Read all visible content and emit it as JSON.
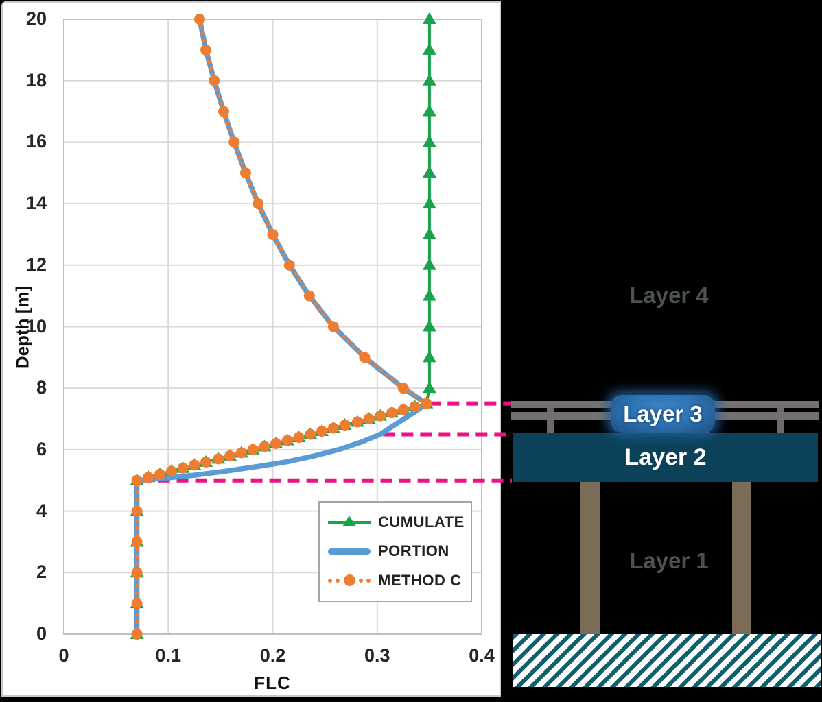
{
  "figure": {
    "description": "FLC vs depth profile chart with pile-supported deck layer schematic"
  },
  "chart_data": {
    "type": "line",
    "title": "",
    "xlabel": "FLC",
    "ylabel": "Depth [m]",
    "xlim": [
      0,
      0.4
    ],
    "ylim": [
      0,
      20
    ],
    "grid": true,
    "x_ticks": [
      "0",
      "0.1",
      "0.2",
      "0.3",
      "0.4"
    ],
    "x_tick_values": [
      0,
      0.1,
      0.2,
      0.3,
      0.4
    ],
    "y_ticks": [
      "0",
      "2",
      "4",
      "6",
      "8",
      "10",
      "12",
      "14",
      "16",
      "18",
      "20"
    ],
    "y_tick_values": [
      0,
      2,
      4,
      6,
      8,
      10,
      12,
      14,
      16,
      18,
      20
    ],
    "legend": {
      "position": "inside-bottom-right"
    },
    "colors": {
      "grid": "#d9d9d9",
      "plot_border": "#bfbfbf",
      "tick_text": "#262626"
    },
    "series": [
      {
        "name": "CUMULATE",
        "color": "#19a34b",
        "marker": "triangle",
        "line": "solid",
        "width": 4,
        "points": [
          [
            0.35,
            20
          ],
          [
            0.35,
            19
          ],
          [
            0.35,
            18
          ],
          [
            0.35,
            17
          ],
          [
            0.35,
            16
          ],
          [
            0.35,
            15
          ],
          [
            0.35,
            14
          ],
          [
            0.35,
            13
          ],
          [
            0.35,
            12
          ],
          [
            0.35,
            11
          ],
          [
            0.35,
            10
          ],
          [
            0.35,
            9
          ],
          [
            0.35,
            8
          ],
          [
            0.347,
            7.5
          ],
          [
            0.336,
            7.4
          ],
          [
            0.325,
            7.3
          ],
          [
            0.314,
            7.2
          ],
          [
            0.303,
            7.1
          ],
          [
            0.292,
            7.0
          ],
          [
            0.281,
            6.9
          ],
          [
            0.269,
            6.8
          ],
          [
            0.258,
            6.7
          ],
          [
            0.247,
            6.6
          ],
          [
            0.236,
            6.5
          ],
          [
            0.225,
            6.4
          ],
          [
            0.214,
            6.3
          ],
          [
            0.203,
            6.2
          ],
          [
            0.192,
            6.1
          ],
          [
            0.181,
            6.0
          ],
          [
            0.17,
            5.9
          ],
          [
            0.159,
            5.8
          ],
          [
            0.148,
            5.7
          ],
          [
            0.136,
            5.6
          ],
          [
            0.125,
            5.5
          ],
          [
            0.114,
            5.4
          ],
          [
            0.103,
            5.3
          ],
          [
            0.092,
            5.2
          ],
          [
            0.081,
            5.1
          ],
          [
            0.07,
            5
          ],
          [
            0.07,
            4
          ],
          [
            0.07,
            3
          ],
          [
            0.07,
            2
          ],
          [
            0.07,
            1
          ],
          [
            0.07,
            0
          ]
        ]
      },
      {
        "name": "PORTION",
        "color": "#5b9bd5",
        "marker": "none",
        "line": "solid",
        "width": 7.5,
        "points": [
          [
            0.13,
            20
          ],
          [
            0.136,
            19
          ],
          [
            0.144,
            18
          ],
          [
            0.153,
            17
          ],
          [
            0.163,
            16
          ],
          [
            0.174,
            15
          ],
          [
            0.186,
            14
          ],
          [
            0.2,
            13
          ],
          [
            0.216,
            12
          ],
          [
            0.235,
            11
          ],
          [
            0.258,
            10
          ],
          [
            0.288,
            9
          ],
          [
            0.325,
            8
          ],
          [
            0.347,
            7.5
          ],
          [
            0.335,
            7.2
          ],
          [
            0.321,
            6.9
          ],
          [
            0.312,
            6.7
          ],
          [
            0.303,
            6.5
          ],
          [
            0.285,
            6.25
          ],
          [
            0.263,
            6.0
          ],
          [
            0.24,
            5.8
          ],
          [
            0.213,
            5.6
          ],
          [
            0.185,
            5.45
          ],
          [
            0.155,
            5.3
          ],
          [
            0.125,
            5.17
          ],
          [
            0.098,
            5.08
          ],
          [
            0.07,
            5
          ],
          [
            0.07,
            4
          ],
          [
            0.07,
            3
          ],
          [
            0.07,
            2
          ],
          [
            0.07,
            1
          ],
          [
            0.07,
            0
          ]
        ]
      },
      {
        "name": "METHOD C",
        "color": "#ed7d31",
        "marker": "circle",
        "line": "dotted",
        "width": 5.5,
        "points": [
          [
            0.13,
            20
          ],
          [
            0.136,
            19
          ],
          [
            0.144,
            18
          ],
          [
            0.153,
            17
          ],
          [
            0.163,
            16
          ],
          [
            0.174,
            15
          ],
          [
            0.186,
            14
          ],
          [
            0.2,
            13
          ],
          [
            0.216,
            12
          ],
          [
            0.235,
            11
          ],
          [
            0.258,
            10
          ],
          [
            0.288,
            9
          ],
          [
            0.325,
            8
          ],
          [
            0.347,
            7.5
          ],
          [
            0.336,
            7.4
          ],
          [
            0.325,
            7.3
          ],
          [
            0.314,
            7.2
          ],
          [
            0.303,
            7.1
          ],
          [
            0.292,
            7.0
          ],
          [
            0.281,
            6.9
          ],
          [
            0.269,
            6.8
          ],
          [
            0.258,
            6.7
          ],
          [
            0.247,
            6.6
          ],
          [
            0.236,
            6.5
          ],
          [
            0.225,
            6.4
          ],
          [
            0.214,
            6.3
          ],
          [
            0.203,
            6.2
          ],
          [
            0.192,
            6.1
          ],
          [
            0.181,
            6.0
          ],
          [
            0.17,
            5.9
          ],
          [
            0.159,
            5.8
          ],
          [
            0.148,
            5.7
          ],
          [
            0.136,
            5.6
          ],
          [
            0.125,
            5.5
          ],
          [
            0.114,
            5.4
          ],
          [
            0.103,
            5.3
          ],
          [
            0.092,
            5.2
          ],
          [
            0.081,
            5.1
          ],
          [
            0.07,
            5
          ],
          [
            0.07,
            4
          ],
          [
            0.07,
            3
          ],
          [
            0.07,
            2
          ],
          [
            0.07,
            1
          ],
          [
            0.07,
            0
          ]
        ]
      }
    ],
    "guide_lines": {
      "color": "#e91383",
      "style": "dashed",
      "items": [
        {
          "depth": 7.5,
          "from_flc": 0.347
        },
        {
          "depth": 6.5,
          "from_flc": 0.303
        },
        {
          "depth": 5.0,
          "from_flc": 0.07
        }
      ]
    }
  },
  "diagram": {
    "background": "#000000",
    "layers": {
      "layer4": {
        "label": "Layer 4",
        "color": "#4c534e"
      },
      "layer3": {
        "label": "Layer 3",
        "color": "#ffffff"
      },
      "layer2": {
        "label": "Layer 2",
        "color": "#ffffff"
      },
      "layer1": {
        "label": "Layer 1",
        "color": "#4c534e"
      }
    },
    "colors": {
      "guardrail_gray": "#767171",
      "deck_navy": "#0b4159",
      "badge_blue": "#2e75b6",
      "pile_brown": "#7b6c58",
      "hatch_teal": "#0f5f6d",
      "callout_pink": "#e91383"
    }
  }
}
